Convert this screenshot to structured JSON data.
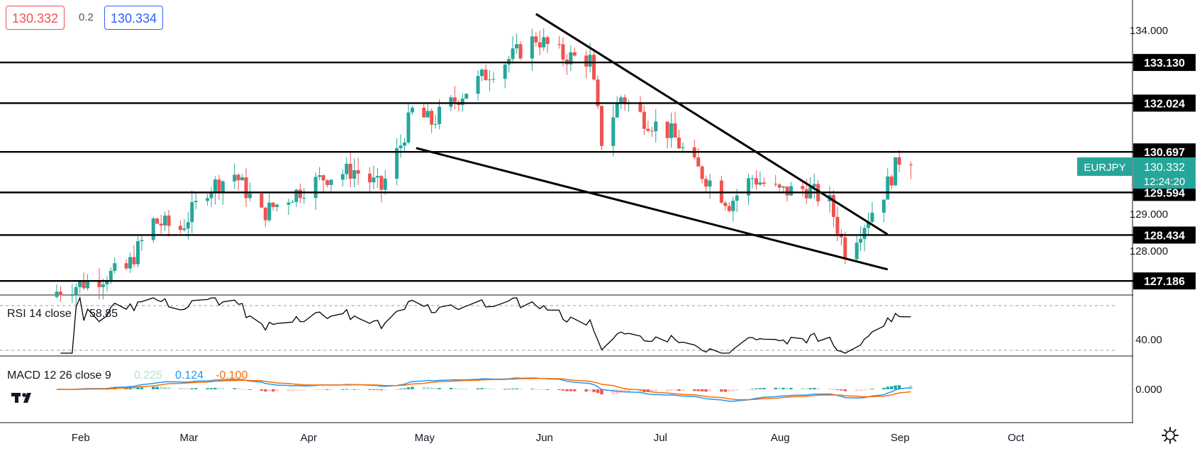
{
  "header": {
    "bid": "130.332",
    "spread": "0.2",
    "ask": "130.334"
  },
  "symbol_badge": {
    "symbol": "EURJPY",
    "price": "130.332",
    "countdown": "12:24:20",
    "color": "#26a69a"
  },
  "colors": {
    "up": "#26a69a",
    "down": "#ef5350",
    "level_line": "#000000",
    "rsi_line": "#000000",
    "macd_line": "#2196f3",
    "signal_line": "#ff6d00"
  },
  "rsi": {
    "label": "RSI 14 close",
    "value": "58.85",
    "tick": "40.00",
    "levels": [
      70,
      30
    ]
  },
  "macd": {
    "label": "MACD 12 26 close 9",
    "hist_value": "0.225",
    "macd_value": "0.124",
    "signal_value": "-0.100",
    "tick": "0.000"
  },
  "chart_data": {
    "type": "candlestick",
    "symbol": "EURJPY",
    "x_ticks": [
      "Feb",
      "Mar",
      "Apr",
      "May",
      "Jun",
      "Jul",
      "Aug",
      "Sep",
      "Oct"
    ],
    "y_ticks": [
      {
        "label": "134.000",
        "value": 134.0
      },
      {
        "label": "129.000",
        "value": 129.0
      },
      {
        "label": "128.000",
        "value": 128.0
      }
    ],
    "ylim": [
      126.8,
      134.8
    ],
    "horizontal_levels": [
      {
        "label": "133.130",
        "value": 133.13
      },
      {
        "label": "132.024",
        "value": 132.024
      },
      {
        "label": "130.697",
        "value": 130.697
      },
      {
        "label": "129.594",
        "value": 129.594
      },
      {
        "label": "128.434",
        "value": 128.434
      },
      {
        "label": "127.186",
        "value": 127.186
      }
    ],
    "trendlines": [
      {
        "from": [
          "2021-06-01",
          134.45
        ],
        "to": [
          "2021-08-31",
          128.45
        ]
      },
      {
        "from": [
          "2021-05-01",
          130.8
        ],
        "to": [
          "2021-08-31",
          127.5
        ]
      }
    ],
    "last_price": 130.332,
    "closes": [
      {
        "date": "2021-01-28",
        "close": 126.9
      },
      {
        "date": "2021-02-15",
        "close": 127.5
      },
      {
        "date": "2021-02-22",
        "close": 128.8
      },
      {
        "date": "2021-03-01",
        "close": 128.6
      },
      {
        "date": "2021-03-08",
        "close": 129.7
      },
      {
        "date": "2021-03-15",
        "close": 130.1
      },
      {
        "date": "2021-03-22",
        "close": 129.0
      },
      {
        "date": "2021-03-31",
        "close": 129.6
      },
      {
        "date": "2021-04-07",
        "close": 130.0
      },
      {
        "date": "2021-04-15",
        "close": 130.2
      },
      {
        "date": "2021-04-22",
        "close": 129.7
      },
      {
        "date": "2021-04-27",
        "close": 130.9
      },
      {
        "date": "2021-04-30",
        "close": 131.8
      },
      {
        "date": "2021-05-05",
        "close": 131.5
      },
      {
        "date": "2021-05-12",
        "close": 132.2
      },
      {
        "date": "2021-05-19",
        "close": 132.8
      },
      {
        "date": "2021-05-26",
        "close": 133.3
      },
      {
        "date": "2021-06-01",
        "close": 133.8
      },
      {
        "date": "2021-06-08",
        "close": 133.3
      },
      {
        "date": "2021-06-15",
        "close": 133.2
      },
      {
        "date": "2021-06-18",
        "close": 131.0
      },
      {
        "date": "2021-06-23",
        "close": 132.2
      },
      {
        "date": "2021-06-29",
        "close": 131.6
      },
      {
        "date": "2021-07-06",
        "close": 131.2
      },
      {
        "date": "2021-07-12",
        "close": 130.3
      },
      {
        "date": "2021-07-16",
        "close": 129.9
      },
      {
        "date": "2021-07-21",
        "close": 129.3
      },
      {
        "date": "2021-07-27",
        "close": 130.0
      },
      {
        "date": "2021-08-03",
        "close": 129.6
      },
      {
        "date": "2021-08-10",
        "close": 129.7
      },
      {
        "date": "2021-08-16",
        "close": 129.3
      },
      {
        "date": "2021-08-20",
        "close": 128.0
      },
      {
        "date": "2021-08-24",
        "close": 128.6
      },
      {
        "date": "2021-08-30",
        "close": 129.6
      },
      {
        "date": "2021-09-03",
        "close": 130.5
      },
      {
        "date": "2021-09-06",
        "close": 130.33
      }
    ]
  }
}
